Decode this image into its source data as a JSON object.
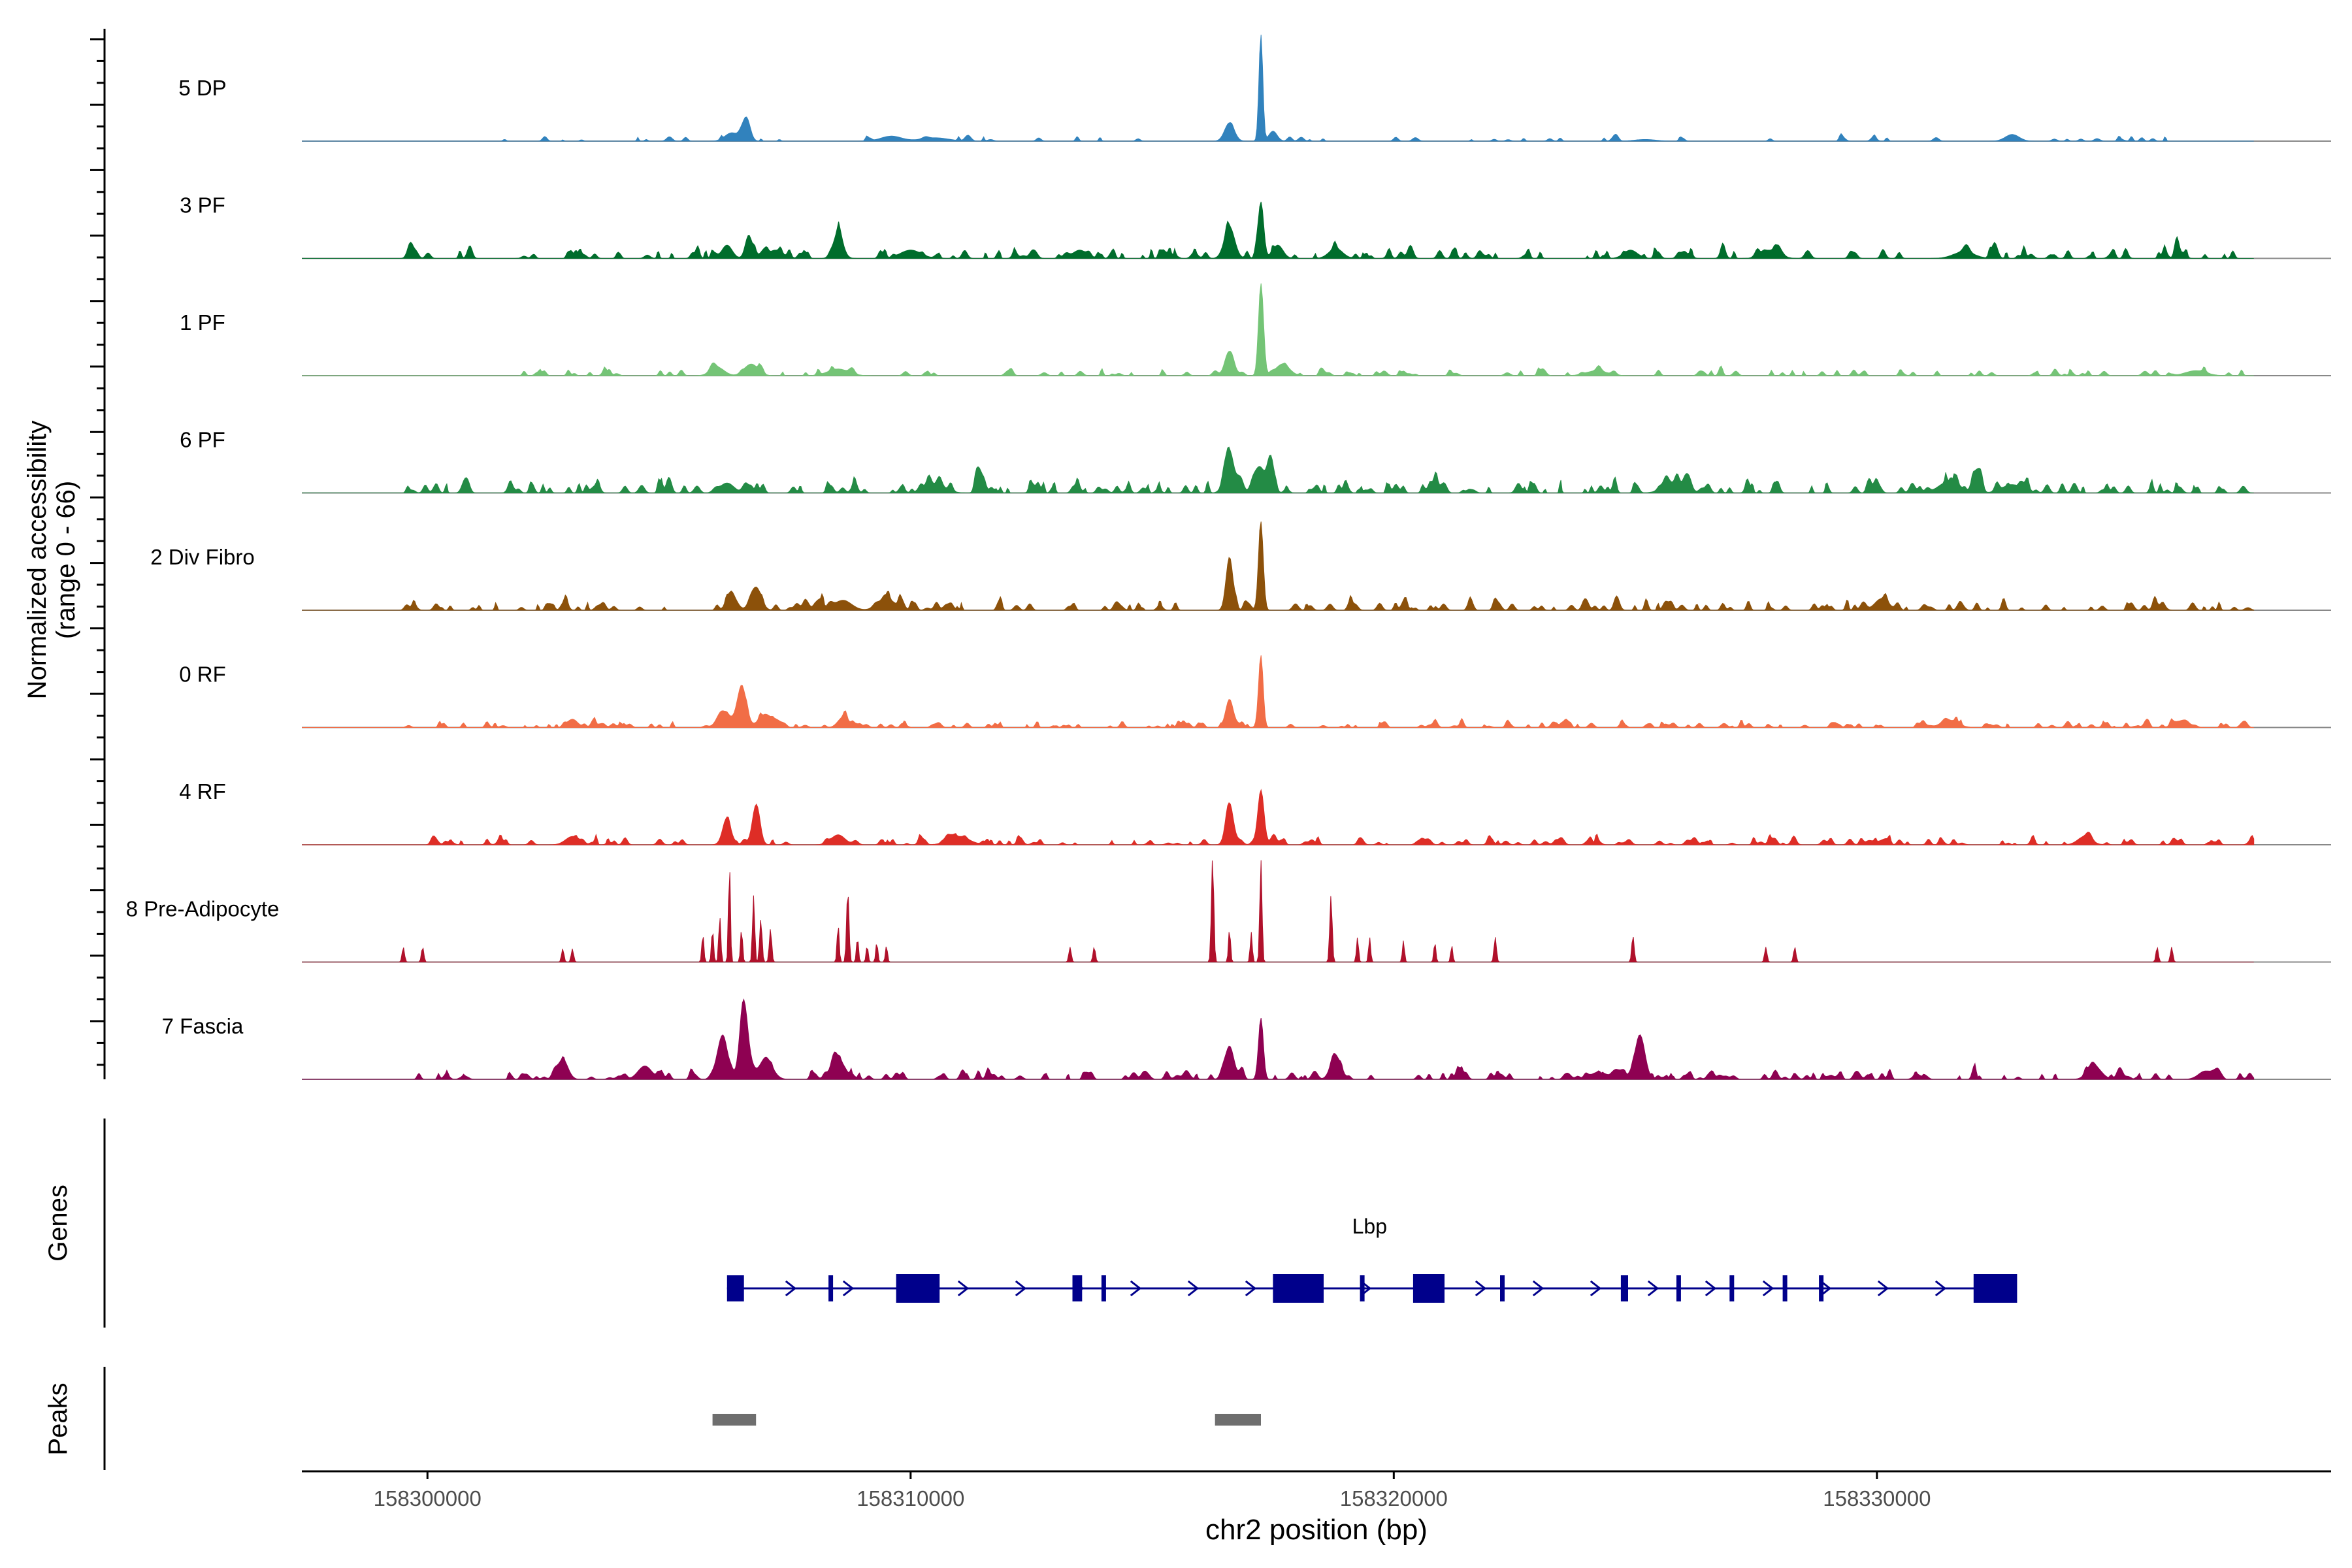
{
  "chart_data": {
    "type": "area",
    "title": "",
    "ylabel_line1": "Normalized accessibility",
    "ylabel_line2": "(range 0 - 66)",
    "y_range": [
      0,
      66
    ],
    "xlabel": "chr2 position (bp)",
    "x_range": [
      158297400,
      158339400
    ],
    "x_ticks": [
      158300000,
      158310000,
      158320000,
      158330000
    ],
    "x_tick_labels": [
      "158300000",
      "158310000",
      "158320000",
      "158330000"
    ],
    "panel_labels": {
      "genes": "Genes",
      "peaks": "Peaks"
    },
    "series": [
      {
        "name": "5 DP",
        "color": "#3182bd",
        "peaks": [
          [
            158306600,
            14,
            110
          ],
          [
            158306300,
            5,
            200
          ],
          [
            158309600,
            3,
            300
          ],
          [
            158310500,
            2,
            400
          ],
          [
            158316600,
            11,
            140
          ],
          [
            158317250,
            64,
            55
          ],
          [
            158317500,
            6,
            120
          ],
          [
            158332800,
            4,
            200
          ],
          [
            158325200,
            1,
            300
          ]
        ],
        "noise": {
          "start": 158301500,
          "end": 158337800,
          "count": 60,
          "max": 3
        }
      },
      {
        "name": "3 PF",
        "color": "#006d2c",
        "peaks": [
          [
            158306200,
            8,
            150
          ],
          [
            158306650,
            14,
            100
          ],
          [
            158307200,
            5,
            200
          ],
          [
            158308500,
            15,
            140
          ],
          [
            158310000,
            5,
            300
          ],
          [
            158313500,
            5,
            200
          ],
          [
            158316600,
            19,
            150
          ],
          [
            158317250,
            34,
            80
          ],
          [
            158317600,
            8,
            150
          ],
          [
            158318800,
            6,
            200
          ],
          [
            158324900,
            5,
            200
          ],
          [
            158327800,
            5,
            250
          ],
          [
            158331800,
            4,
            300
          ]
        ],
        "noise": {
          "start": 158299500,
          "end": 158337800,
          "count": 170,
          "max": 5
        }
      },
      {
        "name": "1 PF",
        "color": "#74c476",
        "peaks": [
          [
            158306000,
            5,
            200
          ],
          [
            158306700,
            7,
            200
          ],
          [
            158316600,
            14,
            130
          ],
          [
            158317250,
            55,
            70
          ],
          [
            158317700,
            7,
            200
          ],
          [
            158308500,
            4,
            300
          ],
          [
            158324200,
            3,
            300
          ],
          [
            158336600,
            3,
            300
          ]
        ],
        "noise": {
          "start": 158302000,
          "end": 158337800,
          "count": 120,
          "max": 3.5
        }
      },
      {
        "name": "6 PF",
        "color": "#238b45",
        "peaks": [
          [
            158316600,
            18,
            150
          ],
          [
            158317200,
            15,
            150
          ],
          [
            158317450,
            22,
            100
          ],
          [
            158306200,
            6,
            200
          ],
          [
            158310500,
            5,
            300
          ],
          [
            158325800,
            6,
            300
          ],
          [
            158331500,
            7,
            300
          ],
          [
            158332800,
            5,
            300
          ]
        ],
        "noise": {
          "start": 158299500,
          "end": 158337800,
          "count": 220,
          "max": 6
        }
      },
      {
        "name": "2 Div Fibro",
        "color": "#8c510a",
        "peaks": [
          [
            158306300,
            9,
            150
          ],
          [
            158306800,
            14,
            150
          ],
          [
            158316600,
            32,
            100
          ],
          [
            158317250,
            50,
            70
          ],
          [
            158308600,
            6,
            250
          ],
          [
            158309500,
            7,
            250
          ],
          [
            158330100,
            7,
            200
          ]
        ],
        "noise": {
          "start": 158299500,
          "end": 158337800,
          "count": 170,
          "max": 5
        }
      },
      {
        "name": "0 RF",
        "color": "#f16d46",
        "peaks": [
          [
            158306100,
            10,
            150
          ],
          [
            158306500,
            24,
            140
          ],
          [
            158307000,
            8,
            200
          ],
          [
            158316600,
            17,
            110
          ],
          [
            158317250,
            42,
            65
          ],
          [
            158303000,
            5,
            150
          ],
          [
            158308600,
            6,
            150
          ],
          [
            158331500,
            4,
            250
          ],
          [
            158336300,
            4,
            200
          ]
        ],
        "noise": {
          "start": 158299500,
          "end": 158337800,
          "count": 190,
          "max": 3
        }
      },
      {
        "name": "4 RF",
        "color": "#de2d26",
        "peaks": [
          [
            158306200,
            13,
            130
          ],
          [
            158306800,
            23,
            110
          ],
          [
            158316600,
            25,
            110
          ],
          [
            158317250,
            33,
            90
          ],
          [
            158303000,
            5,
            200
          ],
          [
            158308500,
            6,
            200
          ],
          [
            158311000,
            5,
            300
          ],
          [
            158334300,
            5,
            200
          ]
        ],
        "noise": {
          "start": 158299500,
          "end": 158337800,
          "count": 180,
          "max": 3.5
        }
      },
      {
        "name": "8 Pre-Adipocyte",
        "color": "#b0112b",
        "peaks": [
          [
            158299500,
            9,
            35
          ],
          [
            158299900,
            9,
            35
          ],
          [
            158302800,
            8,
            35
          ],
          [
            158303000,
            8,
            35
          ],
          [
            158305700,
            17,
            30
          ],
          [
            158305900,
            20,
            30
          ],
          [
            158306050,
            28,
            30
          ],
          [
            158306250,
            60,
            28
          ],
          [
            158306500,
            20,
            30
          ],
          [
            158306750,
            40,
            32
          ],
          [
            158306900,
            26,
            35
          ],
          [
            158307100,
            20,
            35
          ],
          [
            158308500,
            23,
            30
          ],
          [
            158308700,
            44,
            35
          ],
          [
            158308900,
            15,
            30
          ],
          [
            158309100,
            10,
            30
          ],
          [
            158309300,
            12,
            30
          ],
          [
            158309500,
            10,
            30
          ],
          [
            158313300,
            9,
            35
          ],
          [
            158313800,
            9,
            35
          ],
          [
            158316250,
            63,
            35
          ],
          [
            158316600,
            20,
            30
          ],
          [
            158317050,
            18,
            30
          ],
          [
            158317250,
            62,
            32
          ],
          [
            158318700,
            40,
            35
          ],
          [
            158319250,
            15,
            30
          ],
          [
            158319500,
            15,
            30
          ],
          [
            158320200,
            13,
            30
          ],
          [
            158320850,
            12,
            30
          ],
          [
            158321200,
            10,
            30
          ],
          [
            158322100,
            15,
            35
          ],
          [
            158324950,
            16,
            35
          ],
          [
            158327700,
            9,
            35
          ],
          [
            158328300,
            9,
            35
          ],
          [
            158335800,
            9,
            35
          ],
          [
            158336100,
            9,
            35
          ]
        ],
        "noise": {
          "start": 158299500,
          "end": 158337800,
          "count": 0,
          "max": 0
        }
      },
      {
        "name": "7 Fascia",
        "color": "#8e0152",
        "peaks": [
          [
            158306100,
            25,
            150
          ],
          [
            158306550,
            46,
            120
          ],
          [
            158307000,
            12,
            200
          ],
          [
            158302800,
            12,
            150
          ],
          [
            158304500,
            8,
            200
          ],
          [
            158308500,
            12,
            200
          ],
          [
            158316600,
            20,
            130
          ],
          [
            158317250,
            37,
            70
          ],
          [
            158318800,
            14,
            150
          ],
          [
            158324600,
            6,
            150
          ],
          [
            158325100,
            26,
            140
          ],
          [
            158334500,
            8,
            200
          ],
          [
            158336800,
            5,
            200
          ]
        ],
        "noise": {
          "start": 158299500,
          "end": 158337800,
          "count": 200,
          "max": 4
        }
      }
    ],
    "genes": [
      {
        "name": "Lbp",
        "strand": "+",
        "start": 158306200,
        "end": 158332800,
        "exons": [
          [
            158306200,
            158306550
          ],
          [
            158308300,
            158308350
          ],
          [
            158309700,
            158310600
          ],
          [
            158313350,
            158313550
          ],
          [
            158313950,
            158314000
          ],
          [
            158317500,
            158318550
          ],
          [
            158319300,
            158319350
          ],
          [
            158320400,
            158321050
          ],
          [
            158322200,
            158322250
          ],
          [
            158324700,
            158324850
          ],
          [
            158325850,
            158325900
          ],
          [
            158326950,
            158327000
          ],
          [
            158328050,
            158328100
          ],
          [
            158328800,
            158328850
          ],
          [
            158332000,
            158332900
          ]
        ]
      }
    ],
    "peak_regions": [
      [
        158305900,
        158306800
      ],
      [
        158316300,
        158317250
      ]
    ]
  }
}
